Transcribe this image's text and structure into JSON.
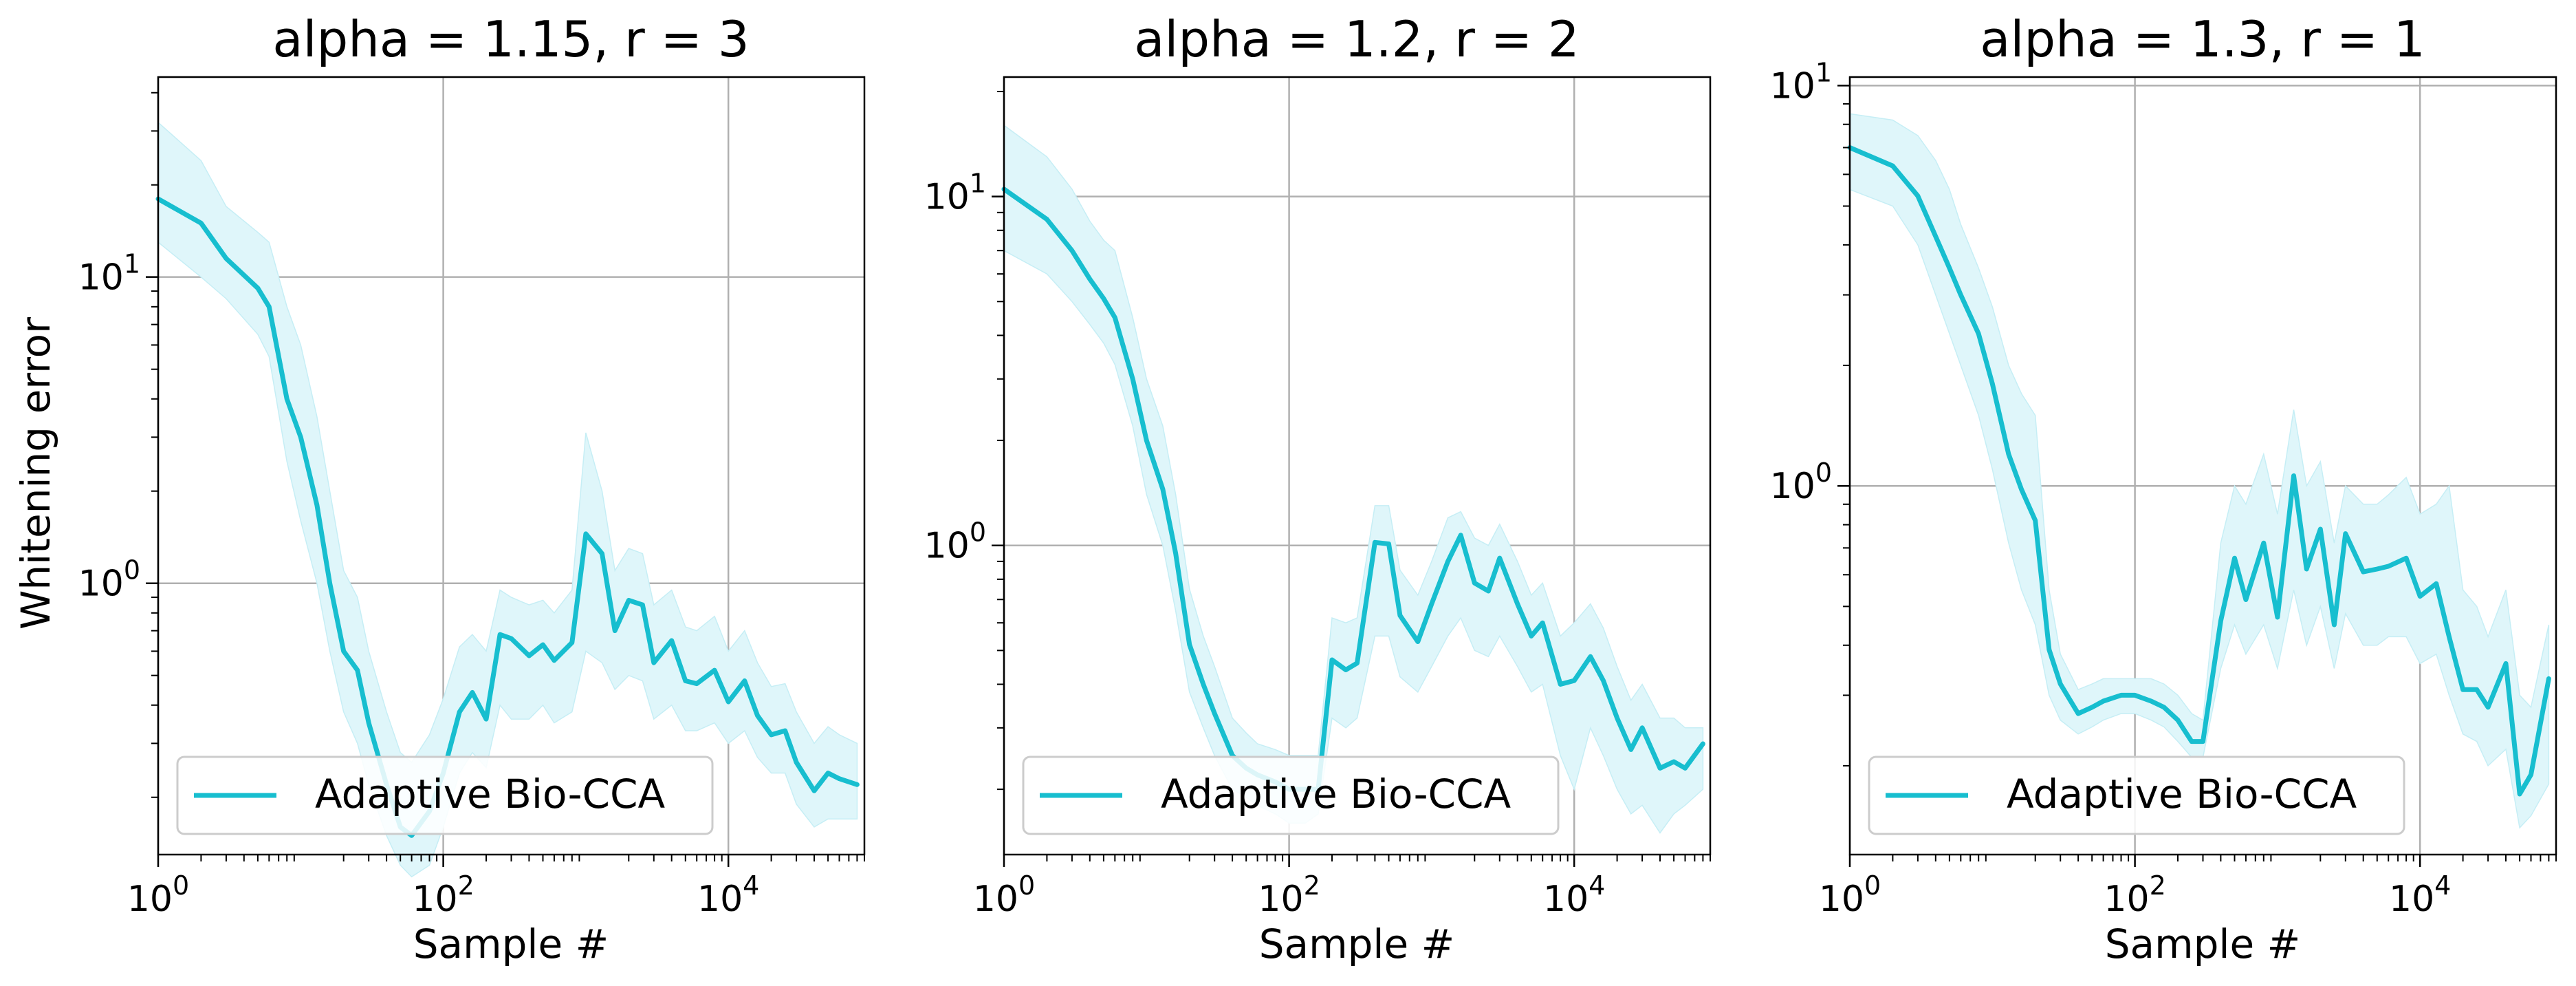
{
  "figure": {
    "ylabel": "Whitening error",
    "colors": {
      "line": "#17becf",
      "band": "#dff6fa",
      "grid": "#b0b0b0",
      "axis": "#000000"
    }
  },
  "chart_data": [
    {
      "type": "line",
      "title": "alpha = 1.15, r = 3",
      "xlabel": "Sample #",
      "ylabel": "Whitening error",
      "x_scale": "log",
      "y_scale": "log",
      "xlim": [
        1,
        90000
      ],
      "ylim": [
        0.13,
        45
      ],
      "x_ticks": [
        {
          "value": 1,
          "base": "10",
          "exp": "0"
        },
        {
          "value": 100,
          "base": "10",
          "exp": "2"
        },
        {
          "value": 10000,
          "base": "10",
          "exp": "4"
        }
      ],
      "y_ticks": [
        {
          "value": 1,
          "base": "10",
          "exp": "0"
        },
        {
          "value": 10,
          "base": "10",
          "exp": "1"
        }
      ],
      "grid": true,
      "legend_location": "lower-left",
      "series": [
        {
          "name": "Adaptive Bio-CCA",
          "x": [
            1,
            2,
            3,
            5,
            6,
            8,
            10,
            13,
            16,
            20,
            25,
            30,
            40,
            50,
            60,
            80,
            100,
            130,
            160,
            200,
            250,
            300,
            400,
            500,
            600,
            800,
            1000,
            1300,
            1600,
            2000,
            2500,
            3000,
            4000,
            5000,
            6000,
            8000,
            10000,
            13000,
            16000,
            20000,
            25000,
            30000,
            40000,
            50000,
            60000,
            80000
          ],
          "y": [
            18,
            15,
            11.5,
            9.2,
            8.0,
            4.0,
            3.0,
            1.8,
            1.0,
            0.6,
            0.52,
            0.35,
            0.22,
            0.16,
            0.15,
            0.18,
            0.24,
            0.38,
            0.44,
            0.36,
            0.68,
            0.66,
            0.58,
            0.63,
            0.56,
            0.64,
            1.45,
            1.25,
            0.7,
            0.88,
            0.85,
            0.55,
            0.65,
            0.48,
            0.47,
            0.52,
            0.41,
            0.48,
            0.37,
            0.32,
            0.33,
            0.26,
            0.21,
            0.24,
            0.23,
            0.22
          ],
          "lower": [
            13,
            10,
            8.5,
            6.5,
            5.5,
            2.5,
            1.6,
            1.0,
            0.6,
            0.38,
            0.3,
            0.22,
            0.15,
            0.12,
            0.11,
            0.12,
            0.16,
            0.24,
            0.28,
            0.25,
            0.4,
            0.36,
            0.36,
            0.4,
            0.35,
            0.38,
            0.6,
            0.55,
            0.45,
            0.5,
            0.48,
            0.36,
            0.4,
            0.33,
            0.33,
            0.35,
            0.3,
            0.33,
            0.27,
            0.24,
            0.24,
            0.19,
            0.16,
            0.17,
            0.17,
            0.17
          ],
          "upper": [
            32,
            24,
            17,
            14,
            13,
            8,
            6,
            3.5,
            2.0,
            1.1,
            0.9,
            0.6,
            0.38,
            0.28,
            0.26,
            0.32,
            0.42,
            0.62,
            0.68,
            0.6,
            0.95,
            0.9,
            0.85,
            0.88,
            0.8,
            0.95,
            3.1,
            2.0,
            1.1,
            1.3,
            1.25,
            0.85,
            0.95,
            0.72,
            0.7,
            0.78,
            0.6,
            0.7,
            0.55,
            0.46,
            0.47,
            0.38,
            0.3,
            0.34,
            0.32,
            0.3
          ]
        }
      ]
    },
    {
      "type": "line",
      "title": "alpha = 1.2, r = 2",
      "xlabel": "Sample #",
      "ylabel": "",
      "x_scale": "log",
      "y_scale": "log",
      "xlim": [
        1,
        90000
      ],
      "ylim": [
        0.13,
        22
      ],
      "x_ticks": [
        {
          "value": 1,
          "base": "10",
          "exp": "0"
        },
        {
          "value": 100,
          "base": "10",
          "exp": "2"
        },
        {
          "value": 10000,
          "base": "10",
          "exp": "4"
        }
      ],
      "y_ticks": [
        {
          "value": 1,
          "base": "10",
          "exp": "0"
        },
        {
          "value": 10,
          "base": "10",
          "exp": "1"
        }
      ],
      "grid": true,
      "legend_location": "lower-left",
      "series": [
        {
          "name": "Adaptive Bio-CCA",
          "x": [
            1,
            2,
            3,
            4,
            5,
            6,
            8,
            10,
            13,
            16,
            20,
            25,
            30,
            40,
            50,
            60,
            80,
            100,
            130,
            160,
            200,
            250,
            300,
            400,
            500,
            600,
            800,
            1000,
            1300,
            1600,
            2000,
            2500,
            3000,
            4000,
            5000,
            6000,
            8000,
            10000,
            13000,
            16000,
            20000,
            25000,
            30000,
            40000,
            50000,
            60000,
            80000
          ],
          "y": [
            10.5,
            8.6,
            7.0,
            5.8,
            5.1,
            4.5,
            3.0,
            2.0,
            1.45,
            0.95,
            0.52,
            0.4,
            0.33,
            0.25,
            0.23,
            0.22,
            0.21,
            0.2,
            0.2,
            0.2,
            0.47,
            0.44,
            0.46,
            1.02,
            1.01,
            0.63,
            0.53,
            0.68,
            0.9,
            1.07,
            0.78,
            0.74,
            0.92,
            0.68,
            0.55,
            0.6,
            0.4,
            0.41,
            0.48,
            0.41,
            0.32,
            0.26,
            0.3,
            0.23,
            0.24,
            0.23,
            0.27
          ],
          "lower": [
            7.0,
            6.0,
            5.0,
            4.3,
            3.8,
            3.3,
            2.2,
            1.4,
            1.0,
            0.65,
            0.38,
            0.3,
            0.25,
            0.2,
            0.19,
            0.18,
            0.17,
            0.16,
            0.16,
            0.17,
            0.32,
            0.3,
            0.32,
            0.55,
            0.55,
            0.42,
            0.38,
            0.45,
            0.55,
            0.62,
            0.5,
            0.48,
            0.55,
            0.45,
            0.38,
            0.4,
            0.25,
            0.2,
            0.3,
            0.25,
            0.2,
            0.17,
            0.18,
            0.15,
            0.17,
            0.18,
            0.2
          ],
          "upper": [
            16,
            13,
            10.5,
            8.5,
            7.5,
            7.0,
            4.5,
            3.0,
            2.2,
            1.4,
            0.75,
            0.55,
            0.45,
            0.32,
            0.29,
            0.27,
            0.26,
            0.25,
            0.25,
            0.25,
            0.62,
            0.6,
            0.62,
            1.3,
            1.3,
            0.85,
            0.72,
            0.9,
            1.2,
            1.25,
            1.05,
            1.0,
            1.15,
            0.9,
            0.72,
            0.78,
            0.55,
            0.6,
            0.68,
            0.58,
            0.45,
            0.36,
            0.4,
            0.32,
            0.32,
            0.3,
            0.3
          ]
        }
      ]
    },
    {
      "type": "line",
      "title": "alpha = 1.3, r = 1",
      "xlabel": "Sample #",
      "ylabel": "",
      "x_scale": "log",
      "y_scale": "log",
      "xlim": [
        1,
        90000
      ],
      "ylim": [
        0.12,
        10.5
      ],
      "x_ticks": [
        {
          "value": 1,
          "base": "10",
          "exp": "0"
        },
        {
          "value": 100,
          "base": "10",
          "exp": "2"
        },
        {
          "value": 10000,
          "base": "10",
          "exp": "4"
        }
      ],
      "y_ticks": [
        {
          "value": 1,
          "base": "10",
          "exp": "0"
        },
        {
          "value": 10,
          "base": "10",
          "exp": "1"
        }
      ],
      "grid": true,
      "legend_location": "lower-left",
      "series": [
        {
          "name": "Adaptive Bio-CCA",
          "x": [
            1,
            2,
            3,
            4,
            5,
            6,
            8,
            10,
            13,
            16,
            20,
            25,
            30,
            40,
            50,
            60,
            80,
            100,
            130,
            160,
            200,
            250,
            300,
            400,
            500,
            600,
            800,
            1000,
            1300,
            1600,
            2000,
            2500,
            3000,
            4000,
            5000,
            6000,
            8000,
            10000,
            13000,
            16000,
            20000,
            25000,
            30000,
            40000,
            50000,
            60000,
            80000
          ],
          "y": [
            7.0,
            6.3,
            5.3,
            4.2,
            3.5,
            3.0,
            2.4,
            1.8,
            1.2,
            0.98,
            0.82,
            0.39,
            0.32,
            0.27,
            0.28,
            0.29,
            0.3,
            0.3,
            0.29,
            0.28,
            0.26,
            0.23,
            0.23,
            0.46,
            0.66,
            0.52,
            0.72,
            0.47,
            1.06,
            0.62,
            0.78,
            0.45,
            0.76,
            0.61,
            0.62,
            0.63,
            0.66,
            0.53,
            0.57,
            0.42,
            0.31,
            0.31,
            0.28,
            0.36,
            0.17,
            0.19,
            0.33
          ],
          "lower": [
            5.5,
            5.0,
            4.0,
            3.0,
            2.4,
            2.0,
            1.5,
            1.1,
            0.72,
            0.55,
            0.45,
            0.3,
            0.26,
            0.24,
            0.25,
            0.26,
            0.27,
            0.27,
            0.26,
            0.25,
            0.23,
            0.21,
            0.21,
            0.35,
            0.45,
            0.38,
            0.45,
            0.35,
            0.55,
            0.4,
            0.5,
            0.35,
            0.48,
            0.4,
            0.4,
            0.42,
            0.42,
            0.36,
            0.38,
            0.3,
            0.24,
            0.23,
            0.2,
            0.22,
            0.14,
            0.15,
            0.18
          ],
          "upper": [
            8.5,
            8.2,
            7.5,
            6.5,
            5.5,
            4.5,
            3.5,
            2.8,
            2.0,
            1.7,
            1.5,
            0.55,
            0.38,
            0.31,
            0.32,
            0.33,
            0.33,
            0.33,
            0.33,
            0.32,
            0.3,
            0.27,
            0.26,
            0.72,
            1.0,
            0.9,
            1.2,
            0.85,
            1.55,
            1.0,
            1.15,
            0.72,
            1.0,
            0.9,
            0.9,
            0.95,
            1.05,
            0.85,
            0.9,
            1.0,
            0.55,
            0.5,
            0.42,
            0.55,
            0.3,
            0.28,
            0.45
          ]
        }
      ]
    }
  ]
}
